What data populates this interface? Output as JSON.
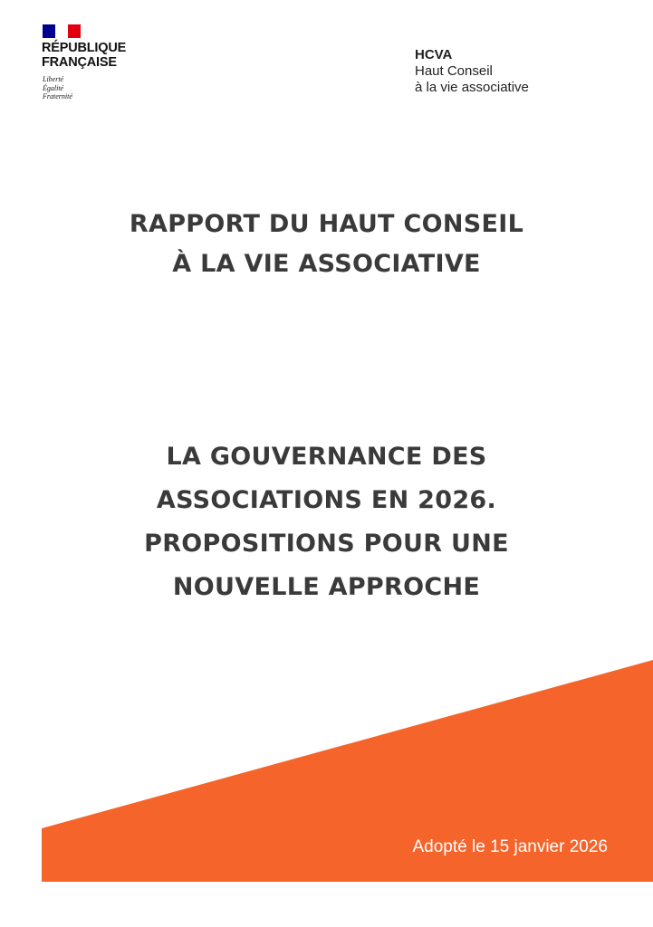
{
  "header": {
    "republique": [
      "RÉPUBLIQUE",
      "FRANÇAISE"
    ],
    "motto": [
      "Liberté",
      "Égalité",
      "Fraternité"
    ],
    "flag_colors": [
      "#000091",
      "#ffffff",
      "#e1000f"
    ],
    "org": {
      "acronym": "HCVA",
      "name_line1": "Haut Conseil",
      "name_line2": "à la vie associative"
    }
  },
  "report_title": [
    "RAPPORT DU HAUT CONSEIL",
    "À LA VIE ASSOCIATIVE"
  ],
  "subject_title": [
    "LA GOUVERNANCE DES",
    "ASSOCIATIONS EN 2026.",
    "PROPOSITIONS POUR UNE",
    "NOUVELLE APPROCHE"
  ],
  "footer": {
    "adopted": "Adopté le 15 janvier 2026",
    "accent_color": "#F5642A"
  }
}
